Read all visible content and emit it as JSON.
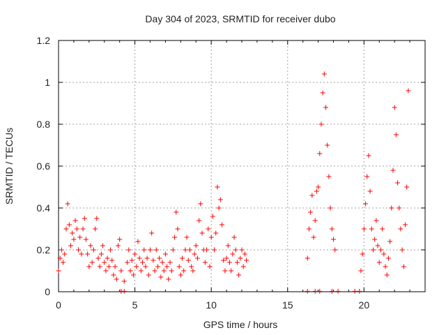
{
  "chart_data": {
    "type": "scatter",
    "title": "Day 304 of 2023, SRMTID for receiver dubo",
    "xlabel": "GPS time / hours",
    "ylabel": "SRMTID / TECUs",
    "xlim": [
      0,
      24
    ],
    "ylim": [
      0,
      1.2
    ],
    "x_ticks": [
      0,
      5,
      10,
      15,
      20
    ],
    "x_tick_labels": [
      "0",
      "5",
      "10",
      "15",
      "20"
    ],
    "y_ticks": [
      0,
      0.2,
      0.4,
      0.6,
      0.8,
      1.0,
      1.2
    ],
    "y_tick_labels": [
      "0",
      "0.2",
      "0.4",
      "0.6",
      "0.8",
      "1",
      "1.2"
    ],
    "grid": true,
    "marker": "+",
    "color": "#ff0000",
    "series": [
      {
        "name": "SRMTID",
        "points": [
          [
            0.0,
            0.1
          ],
          [
            0.1,
            0.16
          ],
          [
            0.2,
            0.2
          ],
          [
            0.3,
            0.14
          ],
          [
            0.4,
            0.18
          ],
          [
            0.5,
            0.3
          ],
          [
            0.6,
            0.42
          ],
          [
            0.7,
            0.32
          ],
          [
            0.8,
            0.22
          ],
          [
            0.9,
            0.28
          ],
          [
            1.0,
            0.25
          ],
          [
            1.1,
            0.34
          ],
          [
            1.2,
            0.3
          ],
          [
            1.3,
            0.2
          ],
          [
            1.4,
            0.26
          ],
          [
            1.5,
            0.18
          ],
          [
            1.6,
            0.3
          ],
          [
            1.7,
            0.35
          ],
          [
            1.8,
            0.25
          ],
          [
            1.9,
            0.18
          ],
          [
            2.0,
            0.12
          ],
          [
            2.1,
            0.22
          ],
          [
            2.2,
            0.14
          ],
          [
            2.3,
            0.2
          ],
          [
            2.4,
            0.3
          ],
          [
            2.5,
            0.35
          ],
          [
            2.6,
            0.16
          ],
          [
            2.7,
            0.12
          ],
          [
            2.8,
            0.18
          ],
          [
            2.9,
            0.22
          ],
          [
            3.0,
            0.14
          ],
          [
            3.1,
            0.1
          ],
          [
            3.2,
            0.16
          ],
          [
            3.3,
            0.12
          ],
          [
            3.4,
            0.2
          ],
          [
            3.5,
            0.15
          ],
          [
            3.6,
            0.08
          ],
          [
            3.7,
            0.12
          ],
          [
            3.8,
            0.06
          ],
          [
            3.9,
            0.22
          ],
          [
            4.0,
            0.25
          ],
          [
            4.1,
            0.1
          ],
          [
            4.3,
            0.05
          ],
          [
            4.5,
            0.14
          ],
          [
            4.6,
            0.2
          ],
          [
            4.7,
            0.1
          ],
          [
            4.8,
            0.15
          ],
          [
            4.9,
            0.08
          ],
          [
            5.0,
            0.18
          ],
          [
            5.1,
            0.12
          ],
          [
            5.2,
            0.24
          ],
          [
            5.3,
            0.16
          ],
          [
            5.4,
            0.1
          ],
          [
            5.5,
            0.14
          ],
          [
            5.6,
            0.2
          ],
          [
            5.7,
            0.12
          ],
          [
            5.8,
            0.16
          ],
          [
            5.9,
            0.08
          ],
          [
            6.0,
            0.2
          ],
          [
            6.1,
            0.28
          ],
          [
            6.2,
            0.15
          ],
          [
            6.3,
            0.1
          ],
          [
            6.4,
            0.2
          ],
          [
            6.5,
            0.12
          ],
          [
            6.6,
            0.16
          ],
          [
            6.7,
            0.07
          ],
          [
            6.8,
            0.14
          ],
          [
            6.9,
            0.1
          ],
          [
            7.0,
            0.18
          ],
          [
            7.1,
            0.12
          ],
          [
            7.2,
            0.06
          ],
          [
            7.3,
            0.14
          ],
          [
            7.4,
            0.1
          ],
          [
            7.5,
            0.2
          ],
          [
            7.6,
            0.26
          ],
          [
            7.7,
            0.38
          ],
          [
            7.8,
            0.3
          ],
          [
            7.9,
            0.12
          ],
          [
            8.0,
            0.08
          ],
          [
            8.1,
            0.16
          ],
          [
            8.2,
            0.1
          ],
          [
            8.3,
            0.2
          ],
          [
            8.4,
            0.26
          ],
          [
            8.5,
            0.15
          ],
          [
            8.6,
            0.2
          ],
          [
            8.7,
            0.12
          ],
          [
            8.8,
            0.1
          ],
          [
            8.9,
            0.18
          ],
          [
            9.0,
            0.22
          ],
          [
            9.1,
            0.16
          ],
          [
            9.2,
            0.34
          ],
          [
            9.3,
            0.42
          ],
          [
            9.4,
            0.28
          ],
          [
            9.5,
            0.2
          ],
          [
            9.6,
            0.14
          ],
          [
            9.7,
            0.2
          ],
          [
            9.8,
            0.3
          ],
          [
            9.9,
            0.12
          ],
          [
            10.0,
            0.26
          ],
          [
            10.1,
            0.36
          ],
          [
            10.2,
            0.2
          ],
          [
            10.3,
            0.28
          ],
          [
            10.4,
            0.5
          ],
          [
            10.5,
            0.4
          ],
          [
            10.6,
            0.44
          ],
          [
            10.7,
            0.32
          ],
          [
            10.8,
            0.15
          ],
          [
            10.9,
            0.1
          ],
          [
            11.0,
            0.16
          ],
          [
            11.1,
            0.22
          ],
          [
            11.2,
            0.14
          ],
          [
            11.3,
            0.1
          ],
          [
            11.4,
            0.18
          ],
          [
            11.5,
            0.26
          ],
          [
            11.6,
            0.2
          ],
          [
            11.7,
            0.14
          ],
          [
            11.8,
            0.08
          ],
          [
            11.9,
            0.16
          ],
          [
            12.0,
            0.2
          ],
          [
            12.1,
            0.12
          ],
          [
            12.2,
            0.18
          ],
          [
            12.3,
            0.15
          ],
          [
            16.3,
            0.16
          ],
          [
            16.4,
            0.3
          ],
          [
            16.5,
            0.38
          ],
          [
            16.6,
            0.46
          ],
          [
            16.7,
            0.26
          ],
          [
            16.8,
            0.34
          ],
          [
            16.9,
            0.48
          ],
          [
            17.0,
            0.5
          ],
          [
            17.1,
            0.66
          ],
          [
            17.2,
            0.8
          ],
          [
            17.3,
            0.95
          ],
          [
            17.4,
            1.04
          ],
          [
            17.5,
            0.88
          ],
          [
            17.6,
            0.7
          ],
          [
            17.7,
            0.55
          ],
          [
            17.8,
            0.4
          ],
          [
            17.9,
            0.3
          ],
          [
            18.0,
            0.25
          ],
          [
            18.1,
            0.2
          ],
          [
            19.8,
            0.1
          ],
          [
            19.9,
            0.18
          ],
          [
            20.0,
            0.3
          ],
          [
            20.1,
            0.42
          ],
          [
            20.2,
            0.55
          ],
          [
            20.3,
            0.65
          ],
          [
            20.4,
            0.48
          ],
          [
            20.5,
            0.3
          ],
          [
            20.6,
            0.2
          ],
          [
            20.7,
            0.25
          ],
          [
            20.8,
            0.34
          ],
          [
            20.9,
            0.22
          ],
          [
            21.0,
            0.14
          ],
          [
            21.1,
            0.2
          ],
          [
            21.2,
            0.3
          ],
          [
            21.3,
            0.18
          ],
          [
            21.4,
            0.12
          ],
          [
            21.5,
            0.08
          ],
          [
            21.6,
            0.16
          ],
          [
            21.7,
            0.24
          ],
          [
            21.8,
            0.4
          ],
          [
            21.9,
            0.58
          ],
          [
            22.0,
            0.88
          ],
          [
            22.1,
            0.75
          ],
          [
            22.2,
            0.52
          ],
          [
            22.3,
            0.4
          ],
          [
            22.4,
            0.3
          ],
          [
            22.5,
            0.2
          ],
          [
            22.6,
            0.12
          ],
          [
            22.7,
            0.32
          ],
          [
            22.8,
            0.5
          ],
          [
            22.9,
            0.96
          ]
        ],
        "gap_markers_near_zero": [
          4.1,
          4.3,
          16.3,
          16.8,
          17.1,
          17.9,
          18.3,
          19.4,
          19.7
        ]
      }
    ]
  }
}
